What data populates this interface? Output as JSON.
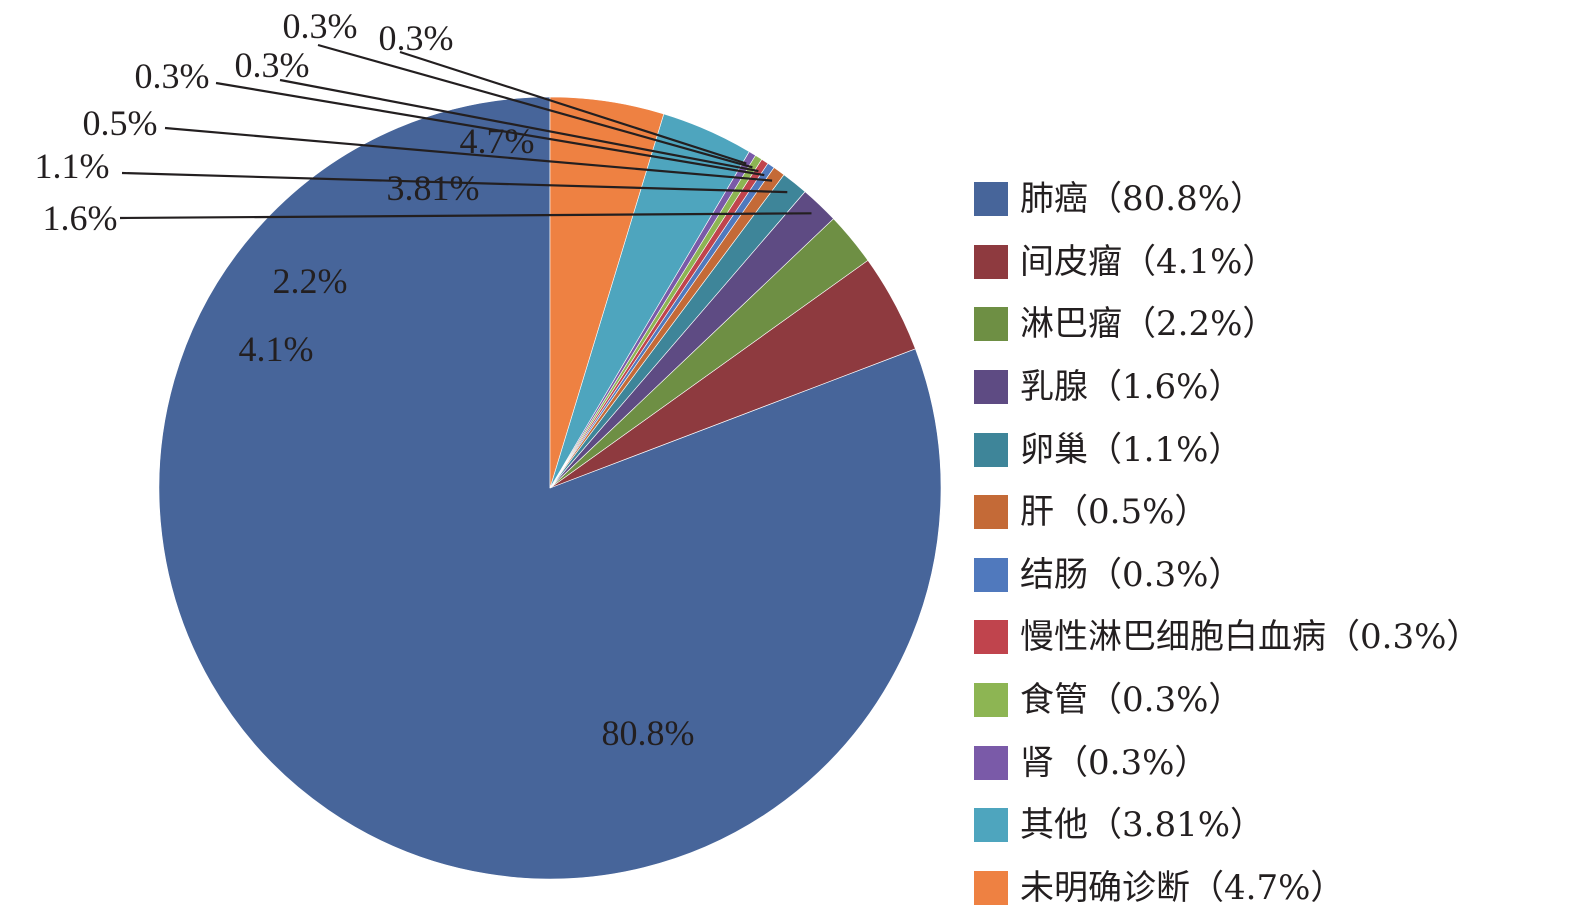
{
  "chart_data": {
    "type": "pie",
    "title": "",
    "start_angle_deg": 0,
    "direction": "counterclockwise",
    "legend_position": "right",
    "slices": [
      {
        "name": "肺癌",
        "value": 80.8,
        "label": "80.8%",
        "legend": "肺癌（80.8%）",
        "color": "#47659a"
      },
      {
        "name": "间皮瘤",
        "value": 4.1,
        "label": "4.1%",
        "legend": "间皮瘤（4.1%）",
        "color": "#8e3a3f"
      },
      {
        "name": "淋巴瘤",
        "value": 2.2,
        "label": "2.2%",
        "legend": "淋巴瘤（2.2%）",
        "color": "#6e8f44"
      },
      {
        "name": "乳腺",
        "value": 1.6,
        "label": "1.6%",
        "legend": "乳腺（1.6%）",
        "color": "#5e4b83"
      },
      {
        "name": "卵巢",
        "value": 1.1,
        "label": "1.1%",
        "legend": "卵巢（1.1%）",
        "color": "#3e8599"
      },
      {
        "name": "肝",
        "value": 0.5,
        "label": "0.5%",
        "legend": "肝（0.5%）",
        "color": "#c46a37"
      },
      {
        "name": "结肠",
        "value": 0.3,
        "label": "0.3%",
        "legend": "结肠（0.3%）",
        "color": "#5079bd"
      },
      {
        "name": "慢性淋巴细胞白血病",
        "value": 0.3,
        "label": "0.3%",
        "legend": "慢性淋巴细胞白血病（0.3%）",
        "color": "#c0444d"
      },
      {
        "name": "食管",
        "value": 0.3,
        "label": "0.3%",
        "legend": "食管（0.3%）",
        "color": "#8db553"
      },
      {
        "name": "肾",
        "value": 0.3,
        "label": "0.3%",
        "legend": "肾（0.3%）",
        "color": "#7a5aa8"
      },
      {
        "name": "其他",
        "value": 3.81,
        "label": "3.81%",
        "legend": "其他（3.81%）",
        "color": "#4ea5be"
      },
      {
        "name": "未明确诊断",
        "value": 4.7,
        "label": "4.7%",
        "legend": "未明确诊断（4.7%）",
        "color": "#ee8142"
      }
    ]
  }
}
